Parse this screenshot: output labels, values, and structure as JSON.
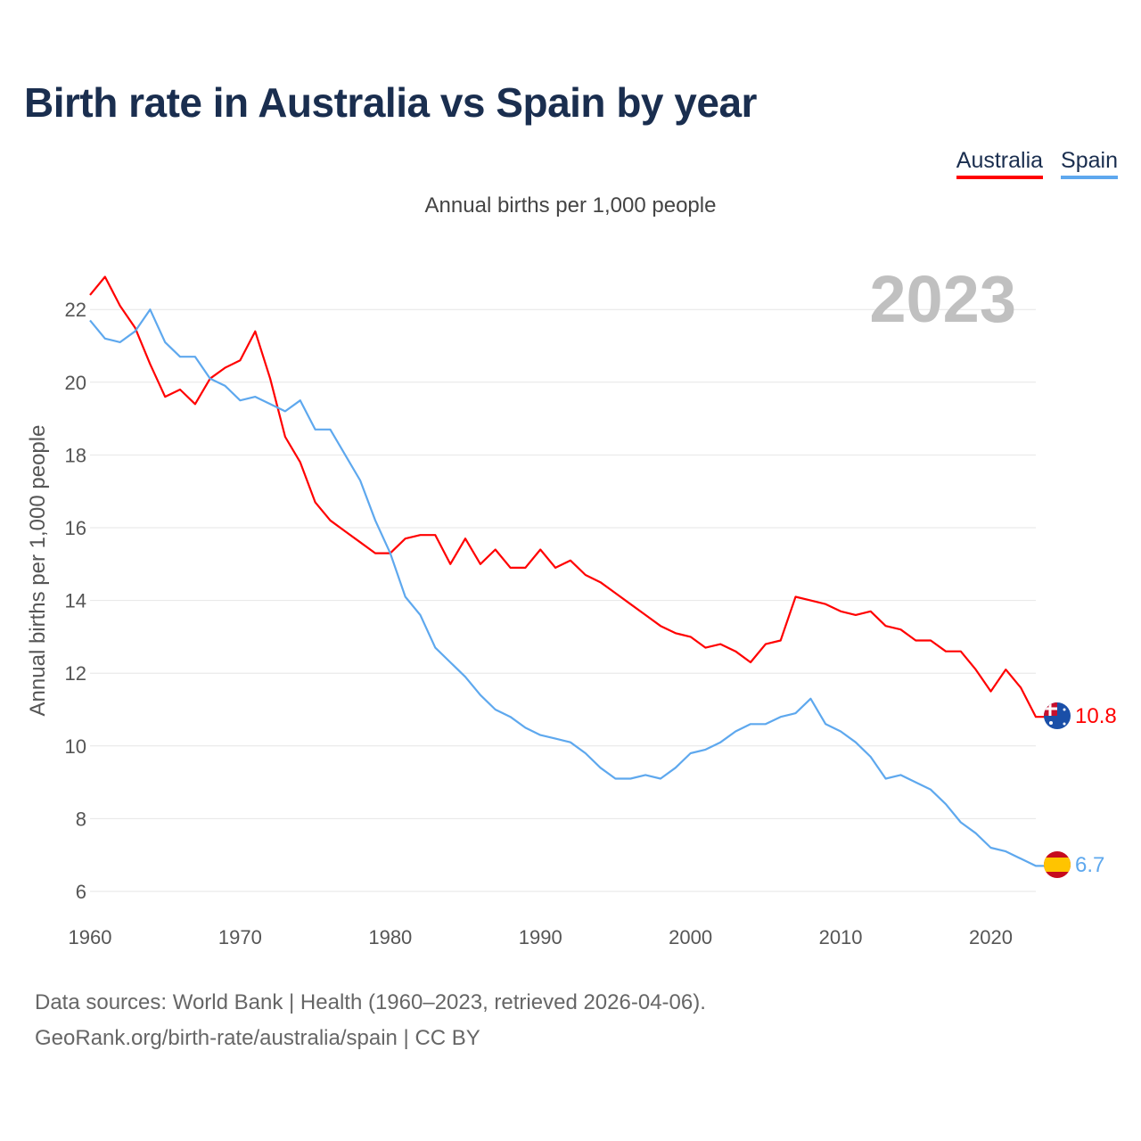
{
  "title": "Birth rate in Australia vs Spain by year",
  "subtitle": "Annual births per 1,000 people",
  "footer": {
    "line1": "Data sources: World Bank | Health (1960–2023, retrieved 2026-04-06).",
    "line2": "GeoRank.org/birth-rate/australia/spain | CC BY"
  },
  "chart_data": {
    "type": "line",
    "title": "Birth rate in Australia vs Spain by year",
    "ylabel": "Annual births per 1,000 people",
    "xlabel": "",
    "year_label": "2023",
    "xlim": [
      1960,
      2023
    ],
    "ylim": [
      6,
      23
    ],
    "yticks": [
      "6",
      "8",
      "10",
      "12",
      "14",
      "16",
      "18",
      "20",
      "22"
    ],
    "xticks": [
      "1960",
      "1970",
      "1980",
      "1990",
      "2000",
      "2010",
      "2020"
    ],
    "grid": true,
    "legend": "top-right",
    "x_start": 1960,
    "series": [
      {
        "name": "Australia",
        "color": "#ff0000",
        "end_label": "10.8",
        "flag": "australia-flag",
        "values": [
          22.4,
          22.9,
          22.1,
          21.5,
          20.5,
          19.6,
          19.8,
          19.4,
          20.1,
          20.4,
          20.6,
          21.4,
          20.1,
          18.5,
          17.8,
          16.7,
          16.2,
          15.9,
          15.6,
          15.3,
          15.3,
          15.7,
          15.8,
          15.8,
          15.0,
          15.7,
          15.0,
          15.4,
          14.9,
          14.9,
          15.4,
          14.9,
          15.1,
          14.7,
          14.5,
          14.2,
          13.9,
          13.6,
          13.3,
          13.1,
          13.0,
          12.7,
          12.8,
          12.6,
          12.3,
          12.8,
          12.9,
          14.1,
          14.0,
          13.9,
          13.7,
          13.6,
          13.7,
          13.3,
          13.2,
          12.9,
          12.9,
          12.6,
          12.6,
          12.1,
          11.5,
          12.1,
          11.6,
          10.8
        ]
      },
      {
        "name": "Spain",
        "color": "#5ea8ee",
        "end_label": "6.7",
        "flag": "spain-flag",
        "values": [
          21.7,
          21.2,
          21.1,
          21.4,
          22.0,
          21.1,
          20.7,
          20.7,
          20.1,
          19.9,
          19.5,
          19.6,
          19.4,
          19.2,
          19.5,
          18.7,
          18.7,
          18.0,
          17.3,
          16.2,
          15.3,
          14.1,
          13.6,
          12.7,
          12.3,
          11.9,
          11.4,
          11.0,
          10.8,
          10.5,
          10.3,
          10.2,
          10.1,
          9.8,
          9.4,
          9.1,
          9.1,
          9.2,
          9.1,
          9.4,
          9.8,
          9.9,
          10.1,
          10.4,
          10.6,
          10.6,
          10.8,
          10.9,
          11.3,
          10.6,
          10.4,
          10.1,
          9.7,
          9.1,
          9.2,
          9.0,
          8.8,
          8.4,
          7.9,
          7.6,
          7.2,
          7.1,
          6.9,
          6.7
        ]
      }
    ]
  }
}
